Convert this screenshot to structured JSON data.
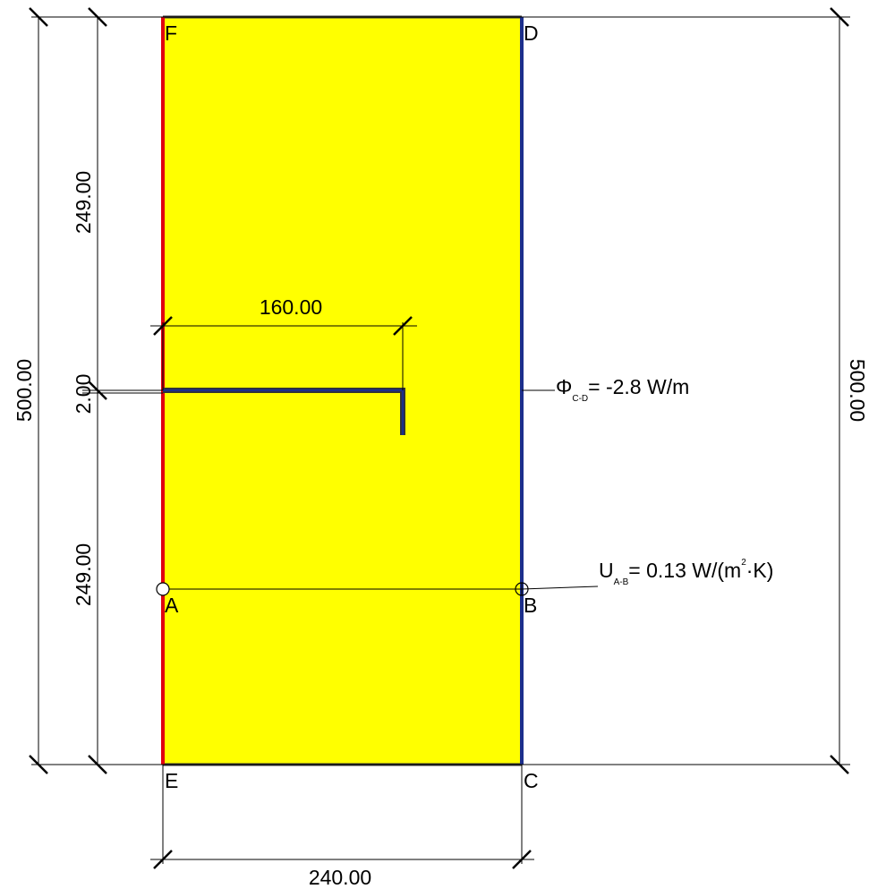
{
  "points": {
    "F": "F",
    "D": "D",
    "E": "E",
    "C": "C",
    "A": "A",
    "B": "B"
  },
  "dimensions": {
    "left_total": "500.00",
    "right_total": "500.00",
    "left_top": "249.00",
    "left_mid": "2.00",
    "left_bottom": "249.00",
    "inner_width": "160.00",
    "bottom_width": "240.00"
  },
  "annotations": {
    "phi": {
      "symbol": "Φ",
      "subscript": "C-D",
      "text": "= -2.8 W/m"
    },
    "u": {
      "symbol": "U",
      "subscript": "A-B",
      "text_pre": "= 0.13 W/(m",
      "superscript": "2",
      "text_post": "·K)"
    }
  },
  "colors": {
    "fill": "#ffff00",
    "red_edge": "#e0000f",
    "blue_edge": "#1c2f8c",
    "frame": "#333333"
  }
}
